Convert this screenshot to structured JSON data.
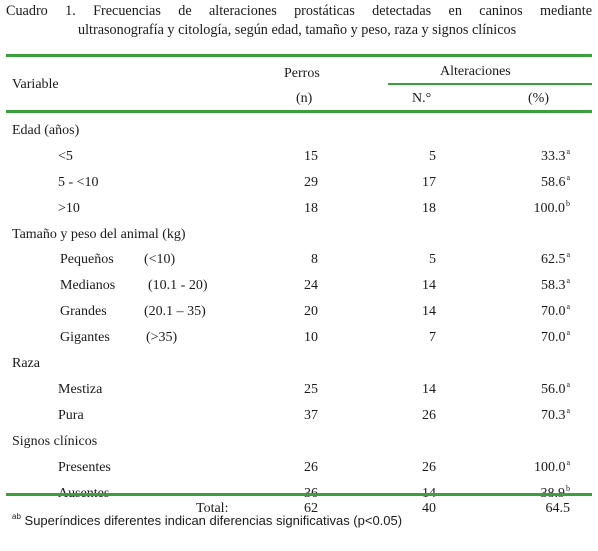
{
  "caption": {
    "line1": "Cuadro 1. Frecuencias de alteraciones prostáticas detectadas en caninos mediante",
    "line2": "ultrasonografía y citología, según edad, tamaño y peso, raza y signos clínicos"
  },
  "header": {
    "variable": "Variable",
    "perros": "Perros",
    "perros_unit": "(n)",
    "alteraciones": "Alteraciones",
    "no": "N.°",
    "pct": "(%)"
  },
  "groups": [
    {
      "label": "Edad (años)",
      "rows": [
        {
          "label": "<5",
          "range": "",
          "n": "15",
          "no": "5",
          "pct": "33.3",
          "sup": "a"
        },
        {
          "label": "5 - <10",
          "range": "",
          "n": "29",
          "no": "17",
          "pct": "58.6",
          "sup": "a"
        },
        {
          "label": ">10",
          "range": "",
          "n": "18",
          "no": "18",
          "pct": "100.0",
          "sup": "b"
        }
      ]
    },
    {
      "label": "Tamaño y peso del animal (kg)",
      "rows": [
        {
          "label": "Pequeños",
          "range": "(<10)",
          "n": "8",
          "no": "5",
          "pct": "62.5",
          "sup": "a"
        },
        {
          "label": "Medianos",
          "range": "(10.1 - 20)",
          "n": "24",
          "no": "14",
          "pct": "58.3",
          "sup": "a"
        },
        {
          "label": "Grandes",
          "range": "(20.1 – 35)",
          "n": "20",
          "no": "14",
          "pct": "70.0",
          "sup": "a"
        },
        {
          "label": "Gigantes",
          "range": "(>35)",
          "n": "10",
          "no": "7",
          "pct": "70.0",
          "sup": "a"
        }
      ]
    },
    {
      "label": "Raza",
      "rows": [
        {
          "label": "Mestiza",
          "range": "",
          "n": "25",
          "no": "14",
          "pct": "56.0",
          "sup": "a"
        },
        {
          "label": "Pura",
          "range": "",
          "n": "37",
          "no": "26",
          "pct": "70.3",
          "sup": "a"
        }
      ]
    },
    {
      "label": "Signos clínicos",
      "rows": [
        {
          "label": "Presentes",
          "range": "",
          "n": "26",
          "no": "26",
          "pct": "100.0",
          "sup": "a"
        },
        {
          "label": "Ausentes",
          "range": "",
          "n": "36",
          "no": "14",
          "pct": "38.9",
          "sup": "b"
        }
      ]
    }
  ],
  "total": {
    "label": "Total:",
    "n": "62",
    "no": "40",
    "pct": "64.5"
  },
  "footnote": {
    "sup": "ab",
    "text": " Superíndices diferentes indican diferencias significativas (p<0.05)"
  },
  "colors": {
    "rule": "#3aa13a",
    "text": "#1a1a1a"
  }
}
